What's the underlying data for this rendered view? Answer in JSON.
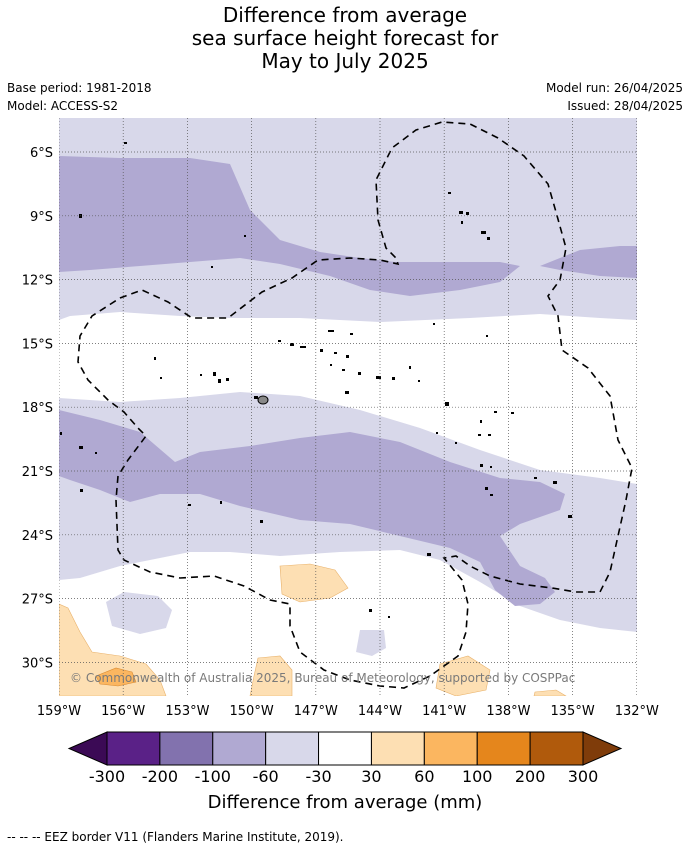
{
  "title": {
    "line1": "Difference from average",
    "line2": "sea surface height forecast for",
    "line3": "May to July 2025"
  },
  "meta": {
    "base_period": "Base period: 1981-2018",
    "model": "Model: ACCESS-S2",
    "model_run": "Model run: 26/04/2025",
    "issued": "Issued: 28/04/2025"
  },
  "map": {
    "lon_ticks": [
      "159°W",
      "156°W",
      "153°W",
      "150°W",
      "147°W",
      "144°W",
      "141°W",
      "138°W",
      "135°W",
      "132°W"
    ],
    "lat_ticks": [
      "6°S",
      "9°S",
      "12°S",
      "15°S",
      "18°S",
      "21°S",
      "24°S",
      "27°S",
      "30°S"
    ],
    "copyright": "© Commonwealth of Australia 2025, Bureau of Meteorology, supported by COSPPac"
  },
  "colorbar": {
    "tick_labels": [
      "-300",
      "-200",
      "-100",
      "-60",
      "-30",
      "30",
      "60",
      "100",
      "200",
      "300"
    ],
    "colors": [
      "#5a2187",
      "#8272ae",
      "#b0a9d2",
      "#d8d8ea",
      "#ffffff",
      "#fddfb3",
      "#fbb660",
      "#e5861c",
      "#b05a0c"
    ],
    "extend_low_color": "#3b0a55",
    "extend_high_color": "#7f3c0a",
    "title": "Difference from average (mm)"
  },
  "legend_note": "--  --  -- EEZ border V11 (Flanders Marine Institute, 2019)."
}
